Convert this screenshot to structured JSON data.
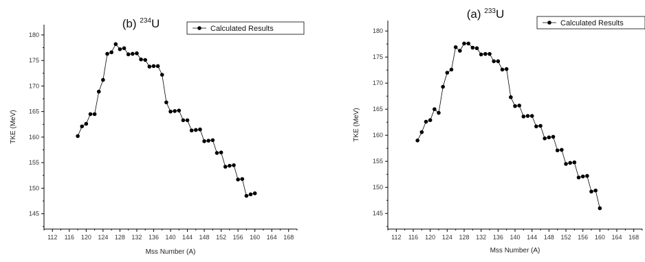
{
  "chart_data": [
    {
      "type": "line",
      "title_prefix": "(b) ",
      "title_sup": "234",
      "title_element": "U",
      "xlabel": "Mss Number (A)",
      "ylabel": "TKE (MeV)",
      "xlim": [
        110,
        170
      ],
      "ylim": [
        142,
        182
      ],
      "xticks": [
        112,
        116,
        120,
        124,
        128,
        132,
        136,
        140,
        144,
        148,
        152,
        156,
        160,
        164,
        168
      ],
      "yticks": [
        145,
        150,
        155,
        160,
        165,
        170,
        175,
        180
      ],
      "legend_position": "top-right",
      "series": [
        {
          "name": "Calculated Results",
          "x": [
            118,
            119,
            120,
            121,
            122,
            123,
            124,
            125,
            126,
            127,
            128,
            129,
            130,
            131,
            132,
            133,
            134,
            135,
            136,
            137,
            138,
            139,
            140,
            141,
            142,
            143,
            144,
            145,
            146,
            147,
            148,
            149,
            150,
            151,
            152,
            153,
            154,
            155,
            156,
            157,
            158,
            159,
            160
          ],
          "y": [
            160.2,
            162.1,
            162.6,
            164.5,
            164.5,
            168.9,
            171.2,
            176.3,
            176.6,
            178.2,
            177.2,
            177.4,
            176.2,
            176.3,
            176.4,
            175.2,
            175.1,
            173.8,
            173.9,
            173.9,
            172.2,
            166.8,
            165.0,
            165.1,
            165.2,
            163.3,
            163.3,
            161.3,
            161.4,
            161.5,
            159.2,
            159.3,
            159.4,
            156.9,
            157.0,
            154.2,
            154.4,
            154.5,
            151.7,
            151.8,
            148.5,
            148.8,
            149.0
          ]
        }
      ]
    },
    {
      "type": "line",
      "title_prefix": "(a) ",
      "title_sup": "233",
      "title_element": "U",
      "xlabel": "Mss Number (A)",
      "ylabel": "TKE (MeV)",
      "xlim": [
        110,
        170
      ],
      "ylim": [
        142,
        182
      ],
      "xticks": [
        112,
        116,
        120,
        124,
        128,
        132,
        136,
        140,
        144,
        148,
        152,
        156,
        160,
        164,
        168
      ],
      "yticks": [
        145,
        150,
        155,
        160,
        165,
        170,
        175,
        180
      ],
      "legend_position": "top-right",
      "series": [
        {
          "name": "Calculated Results",
          "x": [
            117,
            118,
            119,
            120,
            121,
            122,
            123,
            124,
            125,
            126,
            127,
            128,
            129,
            130,
            131,
            132,
            133,
            134,
            135,
            136,
            137,
            138,
            139,
            140,
            141,
            142,
            143,
            144,
            145,
            146,
            147,
            148,
            149,
            150,
            151,
            152,
            153,
            154,
            155,
            156,
            157,
            158,
            159,
            160
          ],
          "y": [
            159.0,
            160.6,
            162.6,
            162.9,
            165.0,
            164.3,
            169.3,
            172.0,
            172.6,
            176.9,
            176.2,
            177.6,
            177.6,
            176.8,
            176.7,
            175.5,
            175.6,
            175.6,
            174.2,
            174.2,
            172.6,
            172.7,
            167.3,
            165.6,
            165.7,
            163.6,
            163.7,
            163.7,
            161.7,
            161.8,
            159.4,
            159.6,
            159.7,
            157.1,
            157.2,
            154.5,
            154.7,
            154.8,
            151.9,
            152.1,
            152.2,
            149.2,
            149.4,
            146.0
          ]
        }
      ]
    }
  ],
  "colors": {
    "marker": "#000000",
    "line": "#000000",
    "axis": "#000000"
  },
  "icons": {
    "legend_marker": "filled-circle-line-icon"
  }
}
